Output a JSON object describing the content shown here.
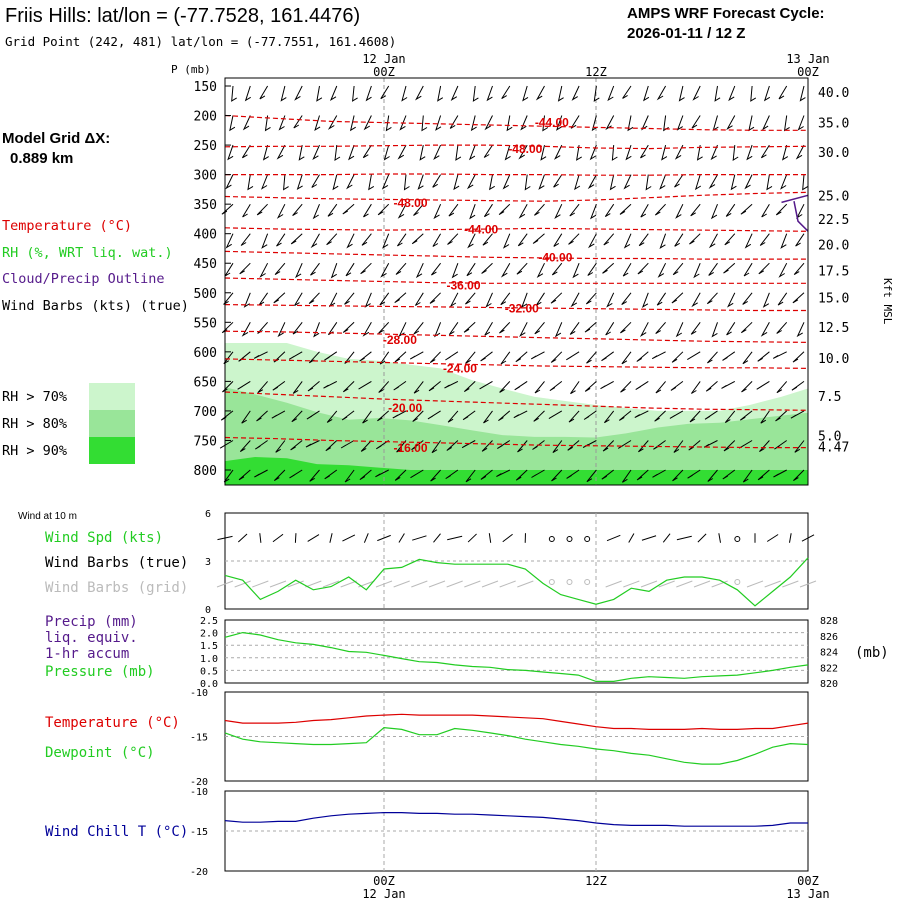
{
  "header": {
    "title": "Friis Hills:  lat/lon = (-77.7528, 161.4476)",
    "subtitle": "Grid Point (242, 481) lat/lon = (-77.7551, 161.4608)",
    "cycle_label": "AMPS WRF Forecast Cycle:",
    "cycle_value": "2026-01-11 / 12  Z"
  },
  "side": {
    "grid_label": "Model Grid ΔX:",
    "grid_value": "0.889 km",
    "legend_temp": "Temperature (°C)",
    "legend_rh": "RH (%, WRT liq. wat.)",
    "legend_cloud": "Cloud/Precip Outline",
    "legend_wind": "Wind Barbs (kts) (true)",
    "rh70": "RH > 70%",
    "rh80": "RH > 80%",
    "rh90": "RH > 90%",
    "wind10m": "Wind at 10 m",
    "wind_spd": "Wind Spd (kts)",
    "wind_barbs_true": "Wind Barbs (true)",
    "wind_barbs_grid": "Wind Barbs (grid)",
    "precip1": "Precip (mm)",
    "precip2": "liq. equiv.",
    "precip3": "1-hr accum",
    "pressure": "Pressure (mb)",
    "temperature": "Temperature (°C)",
    "dewpoint": "Dewpoint (°C)",
    "windchill": "Wind Chill T (°C)",
    "pressure_unit": "(mb)",
    "kft_label": "Kft MSL"
  },
  "colors": {
    "temp": "#dd0000",
    "rh70": "#ccf5cc",
    "rh80": "#99e599",
    "rh90": "#33dd33",
    "green_line": "#22cc22",
    "cloud": "#551a8b",
    "windchill": "#000099",
    "precip_label": "#551a8b",
    "grid_barb": "#bbbbbb"
  },
  "chart_data": [
    {
      "type": "line",
      "panel": "time-height cross section",
      "time_axis": {
        "top_date_labels": [
          "12 Jan",
          "13 Jan"
        ],
        "top_labels": [
          "00Z",
          "12Z",
          "00Z"
        ],
        "bottom_labels": [
          "00Z",
          "12Z",
          "00Z"
        ],
        "bottom_date_labels": [
          "12 Jan",
          "13 Jan"
        ],
        "hours_range": [
          -9,
          24
        ],
        "label_hours": [
          0,
          12,
          24
        ]
      },
      "ylabel": "P (mb)",
      "ylim": [
        150,
        820
      ],
      "pressure_ticks": [
        150,
        200,
        250,
        300,
        350,
        400,
        450,
        500,
        550,
        600,
        650,
        700,
        750,
        800
      ],
      "height_ticks_kft": [
        {
          "label": "40.0",
          "p": 160
        },
        {
          "label": "35.0",
          "p": 212
        },
        {
          "label": "30.0",
          "p": 262
        },
        {
          "label": "25.0",
          "p": 335
        },
        {
          "label": "22.5",
          "p": 375
        },
        {
          "label": "20.0",
          "p": 418
        },
        {
          "label": "17.5",
          "p": 462
        },
        {
          "label": "15.0",
          "p": 508
        },
        {
          "label": "12.5",
          "p": 558
        },
        {
          "label": "10.0",
          "p": 610
        },
        {
          "label": "7.5",
          "p": 675
        },
        {
          "label": "5.0",
          "p": 742
        },
        {
          "label": "4.47",
          "p": 760
        }
      ],
      "temperature_contour_labels": [
        {
          "label": "-44.00",
          "hour": 9.5,
          "p": 212
        },
        {
          "label": "-48.00",
          "hour": 8,
          "p": 257
        },
        {
          "label": "-48.00",
          "hour": 1.5,
          "p": 348
        },
        {
          "label": "-44.00",
          "hour": 5.5,
          "p": 393
        },
        {
          "label": "-40.00",
          "hour": 9.7,
          "p": 440
        },
        {
          "label": "-36.00",
          "hour": 4.5,
          "p": 488
        },
        {
          "label": "-32.00",
          "hour": 7.8,
          "p": 527
        },
        {
          "label": "-28.00",
          "hour": 0.9,
          "p": 580
        },
        {
          "label": "-24.00",
          "hour": 4.3,
          "p": 628
        },
        {
          "label": "-20.00",
          "hour": 1.2,
          "p": 695
        },
        {
          "label": "-16.00",
          "hour": 1.5,
          "p": 763
        }
      ],
      "temperature_contour_lines_p": [
        [
          200,
          205,
          210,
          212,
          214,
          216,
          218,
          220,
          222,
          224,
          225,
          225
        ],
        [
          253,
          252,
          252,
          251,
          250,
          250,
          252,
          255,
          256,
          254,
          253,
          252
        ],
        [
          300,
          300,
          300,
          299,
          299,
          300,
          300,
          301,
          301,
          300,
          300,
          300
        ],
        [
          337,
          339,
          341,
          342,
          343,
          344,
          345,
          343,
          339,
          335,
          332,
          330
        ],
        [
          390,
          392,
          393,
          394,
          393,
          392,
          391,
          392,
          393,
          394,
          395,
          396
        ],
        [
          430,
          432,
          434,
          436,
          438,
          440,
          441,
          442,
          442,
          443,
          443,
          443
        ],
        [
          475,
          477,
          479,
          481,
          483,
          484,
          484,
          484,
          484,
          484,
          484,
          484
        ],
        [
          520,
          521,
          522,
          523,
          524,
          525,
          526,
          527,
          528,
          529,
          530,
          530
        ],
        [
          565,
          566,
          568,
          570,
          572,
          574,
          576,
          578,
          580,
          582,
          583,
          584
        ],
        [
          612,
          614,
          616,
          618,
          620,
          622,
          624,
          625,
          626,
          627,
          627,
          628
        ],
        [
          668,
          672,
          676,
          680,
          683,
          686,
          689,
          692,
          695,
          697,
          698,
          699
        ],
        [
          745,
          747,
          750,
          752,
          754,
          756,
          758,
          759,
          760,
          761,
          762,
          762
        ]
      ],
      "cloud_outline": [
        {
          "hour": 22.5,
          "p": 347
        },
        {
          "hour": 24,
          "p": 335
        }
      ],
      "rh_over_70_top_p": [
        585,
        585,
        585,
        600,
        612,
        615,
        622,
        628,
        648,
        662,
        676,
        683,
        690,
        695,
        700,
        700,
        700,
        690,
        676,
        662
      ],
      "rh_over_80_top_p": [
        660,
        672,
        686,
        702,
        715,
        712,
        716,
        724,
        733,
        741,
        744,
        744,
        745,
        738,
        728,
        722,
        720,
        714,
        708,
        703
      ],
      "rh_over_90_top_p": [
        785,
        778,
        780,
        790,
        792,
        796,
        800,
        800,
        800,
        800,
        800,
        800,
        800,
        800,
        800,
        800,
        800,
        800,
        800,
        800
      ],
      "rh_hours": [
        -9,
        -7.3,
        -5.5,
        -3.8,
        -2,
        -0.3,
        1.5,
        3.2,
        5,
        6.7,
        8.5,
        10.2,
        12,
        13.7,
        15.5,
        17.2,
        19,
        20.7,
        22.5,
        24
      ]
    },
    {
      "type": "line",
      "panel": "wind at 10 m",
      "title": "Wind at 10 m",
      "ylim": [
        0,
        6
      ],
      "y_ticks": [
        "0",
        "3",
        "6"
      ],
      "hours": [
        -9,
        -8,
        -7,
        -6,
        -5,
        -4,
        -3,
        -2,
        -1,
        0,
        1,
        2,
        3,
        4,
        5,
        6,
        7,
        8,
        9,
        10,
        11,
        12,
        13,
        14,
        15,
        16,
        17,
        18,
        19,
        20,
        21,
        22,
        23,
        24
      ],
      "series": [
        {
          "name": "Wind Spd (kts)",
          "values": [
            2.1,
            1.8,
            0.6,
            1.1,
            1.8,
            1.2,
            1.4,
            2.0,
            1.2,
            2.5,
            2.6,
            3.1,
            2.9,
            2.8,
            2.8,
            2.8,
            2.8,
            2.5,
            1.6,
            0.9,
            0.6,
            0.3,
            0.6,
            1.3,
            1.1,
            1.8,
            2.0,
            2.0,
            1.8,
            1.2,
            0.2,
            1.1,
            2.0,
            3.2
          ]
        }
      ],
      "calm_hours": [
        9.5,
        10.5,
        11.5,
        20
      ]
    },
    {
      "type": "line",
      "panel": "precip and pressure",
      "left_ylim": [
        0,
        2.5
      ],
      "left_ticks": [
        "0.0",
        "0.5",
        "1.0",
        "1.5",
        "2.0",
        "2.5"
      ],
      "right_ylim": [
        820,
        828
      ],
      "right_ticks": [
        "820",
        "822",
        "824",
        "826",
        "828"
      ],
      "hours": [
        -9,
        -8,
        -7,
        -6,
        -5,
        -4,
        -3,
        -2,
        -1,
        0,
        1,
        2,
        3,
        4,
        5,
        6,
        7,
        8,
        9,
        10,
        11,
        12,
        13,
        14,
        15,
        16,
        17,
        18,
        19,
        20,
        21,
        22,
        23,
        24
      ],
      "series": [
        {
          "name": "Pressure (mb)",
          "values": [
            825.8,
            826.4,
            826.1,
            825.5,
            825.1,
            824.9,
            824.5,
            824.0,
            823.9,
            823.5,
            823.1,
            822.7,
            822.6,
            822.3,
            822.1,
            822.0,
            821.7,
            821.6,
            821.4,
            821.2,
            821.0,
            820.2,
            820.2,
            820.6,
            820.8,
            820.7,
            820.6,
            820.8,
            820.9,
            821.0,
            821.3,
            821.6,
            822.0,
            822.3
          ]
        },
        {
          "name": "Precip (mm)",
          "values": [
            0,
            0,
            0,
            0,
            0,
            0,
            0,
            0,
            0,
            0,
            0,
            0,
            0,
            0,
            0,
            0,
            0,
            0,
            0,
            0,
            0,
            0,
            0,
            0,
            0,
            0,
            0,
            0,
            0,
            0,
            0,
            0,
            0,
            0
          ]
        }
      ]
    },
    {
      "type": "line",
      "panel": "temperature and dewpoint",
      "ylim": [
        -20,
        -10
      ],
      "y_ticks": [
        "-10",
        "-15",
        "-20"
      ],
      "hours": [
        -9,
        -8,
        -7,
        -6,
        -5,
        -4,
        -3,
        -2,
        -1,
        0,
        1,
        2,
        3,
        4,
        5,
        6,
        7,
        8,
        9,
        10,
        11,
        12,
        13,
        14,
        15,
        16,
        17,
        18,
        19,
        20,
        21,
        22,
        23,
        24
      ],
      "series": [
        {
          "name": "Temperature (°C)",
          "values": [
            -13.2,
            -13.5,
            -13.5,
            -13.5,
            -13.4,
            -13.2,
            -13.1,
            -12.9,
            -12.7,
            -12.6,
            -12.5,
            -12.6,
            -12.6,
            -12.6,
            -12.6,
            -12.7,
            -12.8,
            -12.9,
            -13.0,
            -13.3,
            -13.6,
            -13.9,
            -14.1,
            -14.1,
            -14.2,
            -14.2,
            -14.2,
            -14.1,
            -14.2,
            -14.2,
            -14.1,
            -14.1,
            -13.8,
            -13.5
          ]
        },
        {
          "name": "Dewpoint (°C)",
          "values": [
            -14.6,
            -15.3,
            -15.6,
            -15.7,
            -15.8,
            -15.9,
            -15.9,
            -15.8,
            -15.7,
            -14.0,
            -14.2,
            -14.8,
            -14.8,
            -14.1,
            -14.3,
            -14.6,
            -14.9,
            -15.3,
            -15.6,
            -15.9,
            -16.1,
            -16.4,
            -16.6,
            -16.9,
            -17.1,
            -17.5,
            -17.9,
            -18.1,
            -18.1,
            -17.7,
            -17.0,
            -16.2,
            -15.8,
            -15.9
          ]
        }
      ]
    },
    {
      "type": "line",
      "panel": "wind chill",
      "ylim": [
        -20,
        -10
      ],
      "y_ticks": [
        "-10",
        "-15",
        "-20"
      ],
      "hours": [
        -9,
        -8,
        -7,
        -6,
        -5,
        -4,
        -3,
        -2,
        -1,
        0,
        1,
        2,
        3,
        4,
        5,
        6,
        7,
        8,
        9,
        10,
        11,
        12,
        13,
        14,
        15,
        16,
        17,
        18,
        19,
        20,
        21,
        22,
        23,
        24
      ],
      "series": [
        {
          "name": "Wind Chill T (°C)",
          "values": [
            -13.7,
            -13.9,
            -13.9,
            -13.8,
            -13.8,
            -13.4,
            -13.1,
            -12.9,
            -12.8,
            -12.7,
            -12.7,
            -12.8,
            -12.8,
            -12.9,
            -12.9,
            -13.0,
            -13.1,
            -13.2,
            -13.3,
            -13.5,
            -13.7,
            -14.0,
            -14.2,
            -14.3,
            -14.3,
            -14.3,
            -14.4,
            -14.4,
            -14.4,
            -14.4,
            -14.4,
            -14.3,
            -14.0,
            -14.0
          ]
        }
      ]
    }
  ]
}
